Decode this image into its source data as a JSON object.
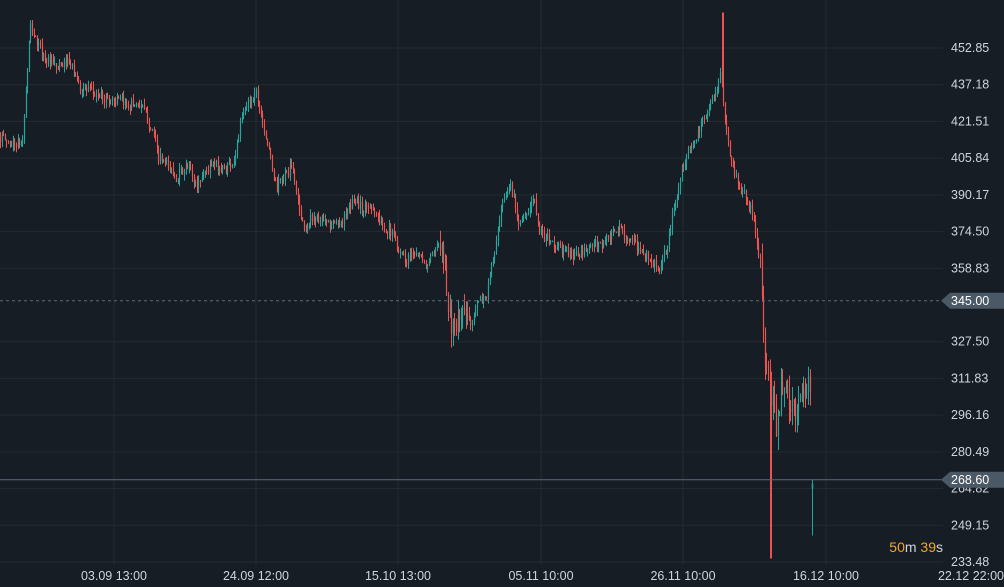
{
  "chart_data": {
    "type": "candlestick",
    "title": "",
    "xlabel": "",
    "ylabel": "",
    "ylim": [
      233.48,
      469.0
    ],
    "y_ticks": [
      452.85,
      437.18,
      421.51,
      405.84,
      390.17,
      374.5,
      358.83,
      327.5,
      311.83,
      296.16,
      280.49,
      264.82,
      249.15,
      233.48
    ],
    "y_tick_labels": [
      "452.85",
      "437.18",
      "421.51",
      "405.84",
      "390.17",
      "374.50",
      "358.83",
      "327.50",
      "311.83",
      "296.16",
      "280.49",
      "264.82",
      "249.15",
      "233.48"
    ],
    "x_tick_labels": [
      "03.09 13:00",
      "24.09 12:00",
      "15.10 13:00",
      "05.11 10:00",
      "26.11 10:00",
      "16.12 10:00",
      "22.12 22:00"
    ],
    "grid": true,
    "price_lines": [
      {
        "value": 345.0,
        "label": "345.00",
        "style": "dashed"
      },
      {
        "value": 268.6,
        "label": "268.60",
        "style": "solid"
      }
    ],
    "price_path": [
      [
        0,
        415
      ],
      [
        10,
        412
      ],
      [
        22,
        412
      ],
      [
        30,
        462
      ],
      [
        36,
        456
      ],
      [
        42,
        450
      ],
      [
        50,
        446
      ],
      [
        58,
        444
      ],
      [
        66,
        447
      ],
      [
        72,
        444
      ],
      [
        80,
        436
      ],
      [
        90,
        434
      ],
      [
        100,
        432
      ],
      [
        112,
        431
      ],
      [
        125,
        429
      ],
      [
        140,
        429
      ],
      [
        152,
        418
      ],
      [
        158,
        406
      ],
      [
        166,
        403
      ],
      [
        176,
        398
      ],
      [
        188,
        402
      ],
      [
        196,
        394
      ],
      [
        204,
        400
      ],
      [
        214,
        403
      ],
      [
        224,
        401
      ],
      [
        234,
        405
      ],
      [
        240,
        420
      ],
      [
        248,
        430
      ],
      [
        256,
        434
      ],
      [
        262,
        423
      ],
      [
        268,
        410
      ],
      [
        276,
        393
      ],
      [
        284,
        398
      ],
      [
        292,
        402
      ],
      [
        298,
        387
      ],
      [
        304,
        375
      ],
      [
        312,
        381
      ],
      [
        320,
        379
      ],
      [
        330,
        377
      ],
      [
        338,
        378
      ],
      [
        346,
        381
      ],
      [
        354,
        389
      ],
      [
        362,
        384
      ],
      [
        372,
        386
      ],
      [
        380,
        378
      ],
      [
        390,
        375
      ],
      [
        398,
        368
      ],
      [
        406,
        362
      ],
      [
        414,
        367
      ],
      [
        424,
        360
      ],
      [
        434,
        364
      ],
      [
        442,
        374
      ],
      [
        448,
        342
      ],
      [
        455,
        330
      ],
      [
        462,
        340
      ],
      [
        470,
        336
      ],
      [
        478,
        344
      ],
      [
        486,
        347
      ],
      [
        494,
        365
      ],
      [
        502,
        385
      ],
      [
        510,
        395
      ],
      [
        518,
        380
      ],
      [
        526,
        380
      ],
      [
        534,
        390
      ],
      [
        540,
        374
      ],
      [
        550,
        370
      ],
      [
        560,
        367
      ],
      [
        570,
        365
      ],
      [
        580,
        364
      ],
      [
        590,
        368
      ],
      [
        600,
        369
      ],
      [
        610,
        372
      ],
      [
        620,
        376
      ],
      [
        630,
        370
      ],
      [
        640,
        367
      ],
      [
        650,
        362
      ],
      [
        660,
        358
      ],
      [
        668,
        370
      ],
      [
        676,
        390
      ],
      [
        684,
        405
      ],
      [
        692,
        411
      ],
      [
        700,
        418
      ],
      [
        708,
        428
      ],
      [
        716,
        434
      ],
      [
        720,
        443
      ],
      [
        725,
        420
      ],
      [
        732,
        403
      ],
      [
        740,
        393
      ],
      [
        748,
        388
      ],
      [
        756,
        373
      ],
      [
        760,
        360
      ],
      [
        764,
        320
      ],
      [
        770,
        307
      ],
      [
        776,
        292
      ],
      [
        782,
        311
      ],
      [
        790,
        298
      ],
      [
        798,
        299
      ],
      [
        806,
        309
      ],
      [
        810,
        307
      ]
    ],
    "last_candle": {
      "x": 812,
      "open": 264.82,
      "close": 266.8,
      "high": 268.6,
      "low": 244.8
    },
    "volatile_windows": [
      [
        440,
        470
      ],
      [
        760,
        812
      ]
    ],
    "spikes": [
      {
        "x": 455,
        "low": 330
      },
      {
        "x": 722,
        "high": 468
      },
      {
        "x": 771,
        "low": 235
      }
    ]
  },
  "timer": {
    "minutes": "50",
    "m_unit": "m",
    "seconds": "39",
    "s_unit": "s"
  },
  "colors": {
    "background": "#161d24",
    "grid": "#232b33",
    "up": "#26a69a",
    "down": "#ef5350",
    "axis_text": "#d1d4dc",
    "price_tag": "#4b5866",
    "timer_accent": "#f5a623"
  }
}
